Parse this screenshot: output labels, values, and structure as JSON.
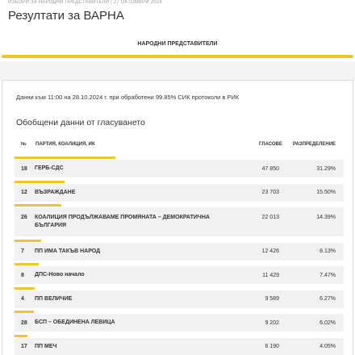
{
  "header": {
    "kicker": "ИЗБОРИ ЗА НАРОДНИ ПРЕДСТАВИТЕЛИ | 27 ОКТОМВРИ 2024",
    "title": "Резултати за ВАРНА",
    "tab": "НАРОДНИ ПРЕДСТАВИТЕЛИ"
  },
  "note": "Данни към 11:00 на 28.10.2024 г. при обработени 99.85% СИК протоколи в РИК",
  "subtitle": "Обобщени данни от гласуването",
  "table": {
    "columns": [
      "№",
      "ПАРТИЯ, КОАЛИЦИЯ, ИК",
      "ГЛАСОВЕ",
      "РАЗПРЕДЕЛЕНИЕ"
    ],
    "rows": [
      {
        "number": "18",
        "party": "ГЕРБ-СДС",
        "votes": "47 850",
        "share": 31.29,
        "share_label": "31.29%"
      },
      {
        "number": "12",
        "party": "ВЪЗРАЖДАНЕ",
        "votes": "23 703",
        "share": 15.5,
        "share_label": "15.50%"
      },
      {
        "number": "26",
        "party": "КОАЛИЦИЯ ПРОДЪЛЖАВАМЕ ПРОМЯНАТА – ДЕМОКРАТИЧНА БЪЛГАРИЯ",
        "votes": "22 013",
        "share": 14.39,
        "share_label": "14.39%"
      },
      {
        "number": "7",
        "party": "ПП ИМА ТАКЪВ НАРОД",
        "votes": "12 426",
        "share": 8.13,
        "share_label": "8.13%"
      },
      {
        "number": "8",
        "party": "ДПС-Ново начало",
        "votes": "11 429",
        "share": 7.47,
        "share_label": "7.47%"
      },
      {
        "number": "4",
        "party": "ПП ВЕЛИЧИЕ",
        "votes": "9 589",
        "share": 6.27,
        "share_label": "6.27%"
      },
      {
        "number": "28",
        "party": "БСП – ОБЕДИНЕНА ЛЕВИЦА",
        "votes": "9 202",
        "share": 6.02,
        "share_label": "6.02%"
      },
      {
        "number": "17",
        "party": "ПП МЕЧ",
        "votes": "6 190",
        "share": 4.05,
        "share_label": "4.05%"
      }
    ]
  }
}
